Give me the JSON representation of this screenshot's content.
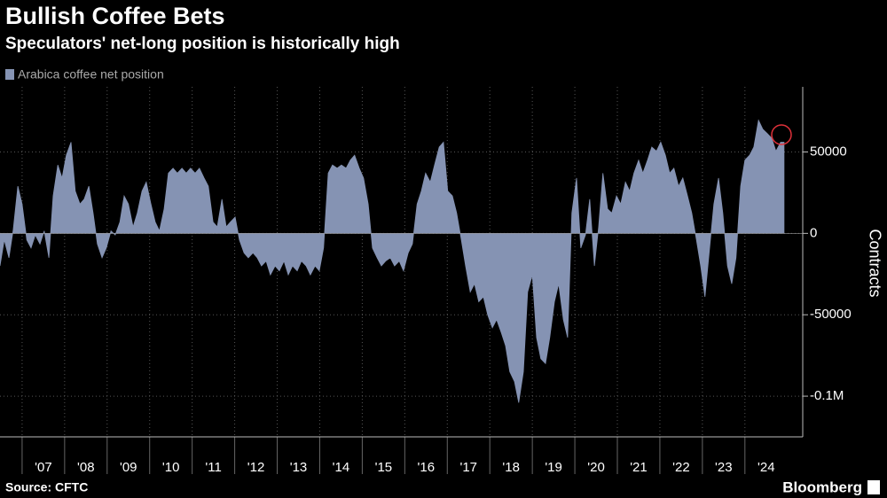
{
  "chart_data": {
    "type": "area",
    "title": "Bullish Coffee Bets",
    "subtitle": "Speculators' net-long position is historically high",
    "y_axis_label": "Contracts",
    "source": "Source: CFTC",
    "brand": "Bloomberg",
    "xlim": [
      2006.48,
      2025.36
    ],
    "ylim": [
      -125000,
      90000
    ],
    "yticks": [
      {
        "value": -100000,
        "label": "-0.1M"
      },
      -50000,
      0,
      50000
    ],
    "xticks": [
      {
        "value": 2007,
        "label": "'07"
      },
      {
        "value": 2008,
        "label": "'08"
      },
      {
        "value": 2009,
        "label": "'09"
      },
      {
        "value": 2010,
        "label": "'10"
      },
      {
        "value": 2011,
        "label": "'11"
      },
      {
        "value": 2012,
        "label": "'12"
      },
      {
        "value": 2013,
        "label": "'13"
      },
      {
        "value": 2014,
        "label": "'14"
      },
      {
        "value": 2015,
        "label": "'15"
      },
      {
        "value": 2016,
        "label": "'16"
      },
      {
        "value": 2017,
        "label": "'17"
      },
      {
        "value": 2018,
        "label": "'18"
      },
      {
        "value": 2019,
        "label": "'19"
      },
      {
        "value": 2020,
        "label": "'20"
      },
      {
        "value": 2021,
        "label": "'21"
      },
      {
        "value": 2022,
        "label": "'22"
      },
      {
        "value": 2023,
        "label": "'23"
      },
      {
        "value": 2024,
        "label": "'24"
      }
    ],
    "grid": true,
    "x": [
      2006.48,
      2006.58,
      2006.69,
      2006.79,
      2006.9,
      2007.0,
      2007.11,
      2007.21,
      2007.31,
      2007.42,
      2007.52,
      2007.63,
      2007.73,
      2007.84,
      2007.94,
      2008.04,
      2008.15,
      2008.25,
      2008.36,
      2008.46,
      2008.57,
      2008.67,
      2008.77,
      2008.88,
      2008.98,
      2009.09,
      2009.19,
      2009.3,
      2009.4,
      2009.5,
      2009.61,
      2009.71,
      2009.82,
      2009.92,
      2010.03,
      2010.13,
      2010.23,
      2010.34,
      2010.44,
      2010.55,
      2010.65,
      2010.76,
      2010.86,
      2010.96,
      2011.07,
      2011.17,
      2011.28,
      2011.38,
      2011.49,
      2011.59,
      2011.7,
      2011.8,
      2011.9,
      2012.01,
      2012.11,
      2012.22,
      2012.32,
      2012.43,
      2012.53,
      2012.63,
      2012.74,
      2012.84,
      2012.95,
      2013.05,
      2013.16,
      2013.26,
      2013.36,
      2013.47,
      2013.57,
      2013.68,
      2013.78,
      2013.89,
      2013.99,
      2014.09,
      2014.2,
      2014.3,
      2014.41,
      2014.51,
      2014.62,
      2014.72,
      2014.82,
      2014.93,
      2015.03,
      2015.14,
      2015.24,
      2015.35,
      2015.45,
      2015.55,
      2015.66,
      2015.76,
      2015.87,
      2015.97,
      2016.08,
      2016.18,
      2016.29,
      2016.39,
      2016.49,
      2016.6,
      2016.7,
      2016.81,
      2016.91,
      2017.01,
      2017.12,
      2017.22,
      2017.33,
      2017.43,
      2017.54,
      2017.64,
      2017.74,
      2017.85,
      2017.95,
      2018.06,
      2018.16,
      2018.27,
      2018.37,
      2018.47,
      2018.58,
      2018.68,
      2018.79,
      2018.89,
      2019.0,
      2019.1,
      2019.2,
      2019.31,
      2019.41,
      2019.52,
      2019.62,
      2019.73,
      2019.83,
      2019.93,
      2020.04,
      2020.14,
      2020.25,
      2020.35,
      2020.46,
      2020.56,
      2020.66,
      2020.77,
      2020.87,
      2020.98,
      2021.08,
      2021.19,
      2021.29,
      2021.39,
      2021.5,
      2021.6,
      2021.71,
      2021.81,
      2021.92,
      2022.02,
      2022.13,
      2022.23,
      2022.33,
      2022.44,
      2022.54,
      2022.65,
      2022.75,
      2022.86,
      2022.96,
      2023.06,
      2023.17,
      2023.27,
      2023.38,
      2023.48,
      2023.59,
      2023.69,
      2023.79,
      2023.9,
      2024.0,
      2024.11,
      2024.21,
      2024.32,
      2024.42,
      2024.52,
      2024.63,
      2024.73,
      2024.84,
      2024.92
    ],
    "series": [
      {
        "name": "Arabica coffee net position",
        "color": "#8593b3",
        "values": [
          -20000,
          -4000,
          -15000,
          2000,
          29000,
          18000,
          -4000,
          -9000,
          -1000,
          -6500,
          1500,
          -15000,
          23000,
          42000,
          34000,
          48000,
          56000,
          26000,
          18000,
          21000,
          29000,
          12500,
          -6500,
          -15000,
          -9000,
          1500,
          -1000,
          7000,
          23000,
          18000,
          4000,
          12500,
          26000,
          31500,
          18000,
          7000,
          1500,
          15000,
          37000,
          40000,
          37000,
          40000,
          37000,
          40000,
          37000,
          40000,
          34000,
          29000,
          7000,
          4000,
          21000,
          4000,
          7000,
          10000,
          -4000,
          -12000,
          -15000,
          -12000,
          -15000,
          -20000,
          -17000,
          -25500,
          -20000,
          -23000,
          -17000,
          -25500,
          -20000,
          -23000,
          -17000,
          -20000,
          -25500,
          -20000,
          -23000,
          -9000,
          37000,
          42000,
          40000,
          42000,
          40000,
          45000,
          48000,
          40000,
          34000,
          18000,
          -9000,
          -15000,
          -20000,
          -17000,
          -15000,
          -20000,
          -17000,
          -23000,
          -12000,
          -6500,
          18000,
          26000,
          37000,
          31500,
          42000,
          53000,
          56000,
          26000,
          23000,
          12500,
          -4000,
          -20000,
          -36000,
          -31000,
          -42000,
          -39000,
          -50000,
          -58000,
          -53000,
          -61000,
          -69000,
          -85000,
          -91000,
          -104000,
          -85000,
          -36000,
          -25500,
          -64000,
          -77000,
          -80000,
          -64000,
          -42000,
          -31000,
          -53000,
          -64000,
          12500,
          34000,
          -9000,
          -1000,
          21000,
          -20000,
          4000,
          37000,
          15000,
          12500,
          23000,
          18000,
          31500,
          26000,
          37000,
          45000,
          37000,
          45000,
          53000,
          50500,
          56000,
          48000,
          37000,
          40000,
          29000,
          34000,
          23000,
          12500,
          -4000,
          -20000,
          -39000,
          -9000,
          18000,
          34000,
          12500,
          -20000,
          -31000,
          -15000,
          29000,
          45000,
          48000,
          53000,
          69500,
          64000,
          61500,
          58500,
          50500,
          56000,
          56000
        ]
      }
    ]
  }
}
